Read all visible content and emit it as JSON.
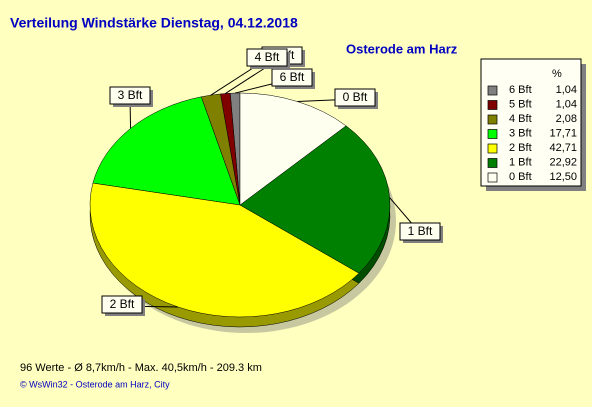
{
  "chart_data": {
    "type": "pie",
    "title": "Verteilung Windstärke  Dienstag, 04.12.2018",
    "subtitle": "Osterode am Harz",
    "legend_header": "%",
    "categories": [
      "6 Bft",
      "5 Bft",
      "4 Bft",
      "3 Bft",
      "2 Bft",
      "1 Bft",
      "0 Bft"
    ],
    "values": [
      1.04,
      1.04,
      2.08,
      17.71,
      42.71,
      22.92,
      12.5
    ],
    "value_labels": [
      "1,04",
      "1,04",
      "2,08",
      "17,71",
      "42,71",
      "22,92",
      "12,50"
    ],
    "colors": [
      "#808080",
      "#800000",
      "#808000",
      "#00ff00",
      "#ffff00",
      "#008000",
      "#fffff0"
    ],
    "footer": "96 Werte   -   Ø 8,7km/h  -  Max. 40,5km/h   -   209.3 km",
    "copyright": "© WsWin32  -  Osterode am Harz, City"
  }
}
